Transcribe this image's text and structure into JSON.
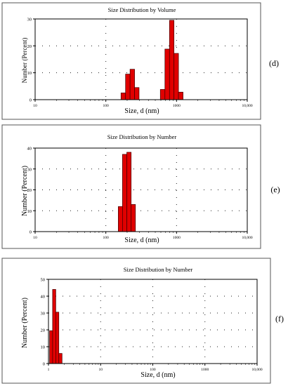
{
  "chart_data": [
    {
      "type": "bar",
      "title": "Size Distribution by Volume",
      "xlabel": "Size, d (nm)",
      "ylabel": "Number (Percent)",
      "panel_label": "(d)",
      "xscale": "log",
      "xlim": [
        10,
        10000
      ],
      "ylim": [
        0,
        30
      ],
      "yticks": [
        0,
        10,
        20,
        30
      ],
      "xticks": [
        "10",
        "100",
        "1000",
        "10,000"
      ],
      "grid": true,
      "bars": [
        {
          "x0": 164,
          "x1": 190,
          "value": 2.5
        },
        {
          "x0": 190,
          "x1": 220,
          "value": 9.5
        },
        {
          "x0": 220,
          "x1": 255,
          "value": 11.3
        },
        {
          "x0": 255,
          "x1": 295,
          "value": 4.5
        },
        {
          "x0": 590,
          "x1": 685,
          "value": 3.8
        },
        {
          "x0": 685,
          "x1": 795,
          "value": 18.8
        },
        {
          "x0": 795,
          "x1": 920,
          "value": 29.5
        },
        {
          "x0": 920,
          "x1": 1065,
          "value": 17.2
        },
        {
          "x0": 1065,
          "x1": 1235,
          "value": 2.8
        }
      ]
    },
    {
      "type": "bar",
      "title": "Size Distribution by Number",
      "xlabel": "Size, d (nm)",
      "ylabel": "Number (Percent)",
      "panel_label": "(e)",
      "xscale": "log",
      "xlim": [
        10,
        10000
      ],
      "ylim": [
        0,
        40
      ],
      "yticks": [
        0,
        10,
        20,
        30,
        40
      ],
      "xticks": [
        "10",
        "100",
        "1000",
        "10,000"
      ],
      "grid": true,
      "bars": [
        {
          "x0": 150,
          "x1": 172,
          "value": 12
        },
        {
          "x0": 172,
          "x1": 198,
          "value": 37
        },
        {
          "x0": 198,
          "x1": 228,
          "value": 38
        },
        {
          "x0": 228,
          "x1": 262,
          "value": 13
        }
      ]
    },
    {
      "type": "bar",
      "title": "Size Distribution by Number",
      "xlabel": "Size, d (nm)",
      "ylabel": "Number (Percent)",
      "panel_label": "(f)",
      "xscale": "log",
      "xlim": [
        1,
        10000
      ],
      "ylim": [
        0,
        50
      ],
      "yticks": [
        0,
        10,
        20,
        30,
        40,
        50
      ],
      "xticks": [
        "1",
        "10",
        "100",
        "1000",
        "10,000"
      ],
      "grid": true,
      "bars": [
        {
          "x0": 1.05,
          "x1": 1.2,
          "value": 19.5
        },
        {
          "x0": 1.2,
          "x1": 1.38,
          "value": 44
        },
        {
          "x0": 1.38,
          "x1": 1.58,
          "value": 30.5
        },
        {
          "x0": 1.58,
          "x1": 1.82,
          "value": 6
        }
      ]
    }
  ]
}
